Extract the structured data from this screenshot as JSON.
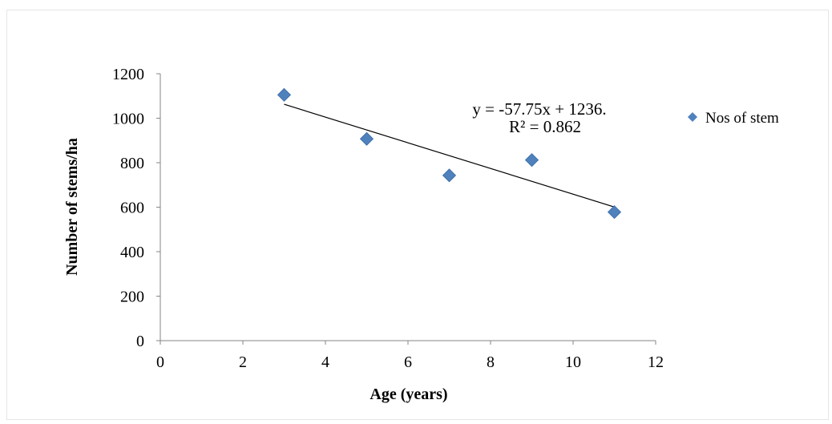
{
  "chart_data": {
    "type": "scatter",
    "title": "",
    "xlabel": "Age (years)",
    "ylabel": "Number of stems/ha",
    "xlim": [
      0,
      12
    ],
    "ylim": [
      0,
      1200
    ],
    "xticks": [
      0,
      2,
      4,
      6,
      8,
      10,
      12
    ],
    "yticks": [
      0,
      200,
      400,
      600,
      800,
      1000,
      1200
    ],
    "grid": false,
    "legend_position": "right",
    "series": [
      {
        "name": "Nos of stem",
        "color": "#4f81bd",
        "marker": "diamond",
        "points": [
          {
            "x": 3,
            "y": 1105
          },
          {
            "x": 5,
            "y": 907
          },
          {
            "x": 7,
            "y": 743
          },
          {
            "x": 9,
            "y": 812
          },
          {
            "x": 11,
            "y": 578
          }
        ]
      }
    ],
    "trendline": {
      "type": "linear",
      "slope": -57.75,
      "intercept": 1236,
      "x_range": [
        3,
        11
      ],
      "color": "#000000"
    },
    "annotations": {
      "equation": "y = -57.75x + 1236.",
      "r_squared": "R² = 0.862"
    }
  }
}
